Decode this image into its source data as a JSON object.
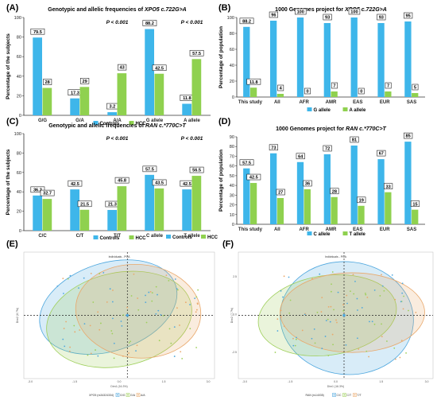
{
  "colors": {
    "c1": "#3eb6ea",
    "c2": "#8fd14f",
    "axis": "#333333",
    "ell_blue": "#4ea7de",
    "ell_green": "#9ecf5a",
    "ell_orange": "#e9a86b"
  },
  "chart_data": [
    {
      "panel": "(A)",
      "type": "bar",
      "title_prefix": "Genotypic and allelic frequencies of ",
      "title_gene": "XPO5 c.722G>A",
      "ylabel": "Percentage of the subjects",
      "ylim": [
        0,
        100
      ],
      "ticks": [
        0,
        20,
        40,
        60,
        80,
        100
      ],
      "categories": [
        "G/G",
        "G/A",
        "A/A",
        "G allele",
        "A allele"
      ],
      "series": [
        {
          "name": "Controls",
          "values": [
            79.5,
            17.3,
            3.2,
            88.2,
            11.8
          ]
        },
        {
          "name": "HCC",
          "values": [
            28,
            29,
            43,
            42.5,
            57.5
          ]
        }
      ],
      "labels": [
        [
          "79.5",
          "17.3",
          "3.2",
          "88.2",
          "11.8"
        ],
        [
          "28",
          "29",
          "43",
          "42.5",
          "57.5"
        ]
      ],
      "pvalues": [
        {
          "text": "P < 0.001",
          "at": 2
        },
        {
          "text": "P < 0.001",
          "at": 4
        }
      ],
      "legend": [
        "Controls",
        "HCC"
      ]
    },
    {
      "panel": "(B)",
      "type": "bar",
      "title_prefix": "1000 Genomes project for ",
      "title_gene": "XPO5 c.722G>A",
      "ylabel": "Percentage of population",
      "ylim": [
        0,
        100
      ],
      "ticks": [
        0,
        20,
        40,
        60,
        80,
        100
      ],
      "categories": [
        "This study",
        "All",
        "AFR",
        "AMR",
        "EAS",
        "EUR",
        "SAS"
      ],
      "series": [
        {
          "name": "G allele",
          "values": [
            88.2,
            96,
            100,
            93,
            100,
            93,
            95
          ]
        },
        {
          "name": "A allele",
          "values": [
            11.8,
            4,
            0,
            7,
            0,
            7,
            5
          ]
        }
      ],
      "labels": [
        [
          "88.2",
          "96",
          "100",
          "93",
          "100",
          "93",
          "95"
        ],
        [
          "11.8",
          "4",
          "0",
          "7",
          "0",
          "7",
          "5"
        ]
      ],
      "pvalues": [],
      "legend": [
        "G allele",
        "A allele"
      ]
    },
    {
      "panel": "(C)",
      "type": "bar",
      "title_prefix": "Genotypic and allelic frequencies of ",
      "title_gene": "RAN c.*770C>T",
      "ylabel": "Percentage of the subjects",
      "ylim": [
        0,
        100
      ],
      "ticks": [
        0,
        20,
        40,
        60,
        80,
        100
      ],
      "categories": [
        "C/C",
        "C/T",
        "T/T",
        "C allele",
        "T allele"
      ],
      "series": [
        {
          "name": "Controls",
          "values": [
            36.2,
            42.5,
            21.3,
            57.5,
            42.5
          ]
        },
        {
          "name": "HCC",
          "values": [
            32.7,
            21.5,
            45.8,
            43.5,
            56.5
          ]
        }
      ],
      "labels": [
        [
          "36.2",
          "42.5",
          "21.3",
          "57.5",
          "42.5"
        ],
        [
          "32.7",
          "21.5",
          "45.8",
          "43.5",
          "56.5"
        ]
      ],
      "pvalues": [
        {
          "text": "P < 0.001",
          "at": 2
        },
        {
          "text": "P < 0.001",
          "at": 4
        }
      ],
      "legend": [
        "Controls",
        "HCC"
      ]
    },
    {
      "panel": "(D)",
      "type": "bar",
      "title_prefix": "1000 Genomes project for ",
      "title_gene": "RAN c.*770C>T",
      "ylabel": "Percentage of population",
      "ylim": [
        0,
        90
      ],
      "ticks": [
        0,
        10,
        20,
        30,
        40,
        50,
        60,
        70,
        80,
        90
      ],
      "categories": [
        "This study",
        "All",
        "AFR",
        "AMR",
        "EAS",
        "EUR",
        "SAS"
      ],
      "series": [
        {
          "name": "C allele",
          "values": [
            57.5,
            73,
            64,
            72,
            81,
            67,
            85
          ]
        },
        {
          "name": "T allele",
          "values": [
            42.5,
            27,
            36,
            28,
            19,
            33,
            15
          ]
        }
      ],
      "labels": [
        [
          "57.5",
          "73",
          "64",
          "72",
          "81",
          "67",
          "85"
        ],
        [
          "42.5",
          "27",
          "36",
          "28",
          "19",
          "33",
          "15"
        ]
      ],
      "pvalues": [],
      "legend": [
        "C allele",
        "T allele"
      ]
    },
    {
      "panel": "(E)",
      "type": "scatter",
      "title": "Individuals - PCA",
      "xlabel": "Dim1 (16.3%)",
      "ylabel": "Dim2 (8.7%)",
      "xlim": [
        -3.8,
        3.2
      ],
      "ylim": [
        -4.6,
        4.6
      ],
      "xticks": [
        "-3.0",
        "-1.5",
        "0.0",
        "1.5",
        "3.0"
      ],
      "legend_title": "XPO5 (rs34324334)",
      "legend": [
        "G/G",
        "G/A",
        "A/A"
      ]
    },
    {
      "panel": "(F)",
      "type": "scatter",
      "title": "Individuals - PCA",
      "xlabel": "Dim1 (16.3%)",
      "ylabel": "Dim2 (7.7%)",
      "xlim": [
        -3.8,
        3.2
      ],
      "ylim": [
        -4.6,
        4.6
      ],
      "xticks": [
        "-3.0",
        "-1.5",
        "0.0",
        "1.5",
        "3.0"
      ],
      "yticks": [
        "2.5",
        "0.0",
        "-2.5"
      ],
      "legend_title": "RAN (rs14035)",
      "legend": [
        "C/C",
        "C/T",
        "T/T"
      ]
    }
  ]
}
